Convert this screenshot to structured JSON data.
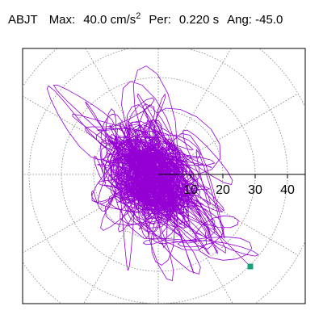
{
  "header": {
    "station": "ABJT",
    "max_label": "Max:",
    "max_value": "40.0",
    "max_unit": "cm/s",
    "max_unit_exp": "2",
    "per_label": "Per:",
    "per_value": "0.220 s",
    "ang_label": "Ang:",
    "ang_value": "-45.0"
  },
  "colors": {
    "trace": "#9400d3",
    "marker": "#1aa37a",
    "grid": "#808080",
    "axis": "#000000"
  },
  "chart_data": {
    "type": "line",
    "subtype": "polar-particle-motion",
    "max": 40.0,
    "radial_ticks": [
      "10",
      "20",
      "30",
      "40"
    ],
    "ring_values": [
      10,
      20,
      30,
      40,
      50
    ],
    "spoke_angles_deg": [
      0,
      30,
      60,
      90,
      120,
      150,
      180,
      210,
      240,
      270,
      300,
      330
    ],
    "angle_deg": -45.0,
    "marker": {
      "x": 28.5,
      "y": -28.5
    },
    "grid": true
  }
}
